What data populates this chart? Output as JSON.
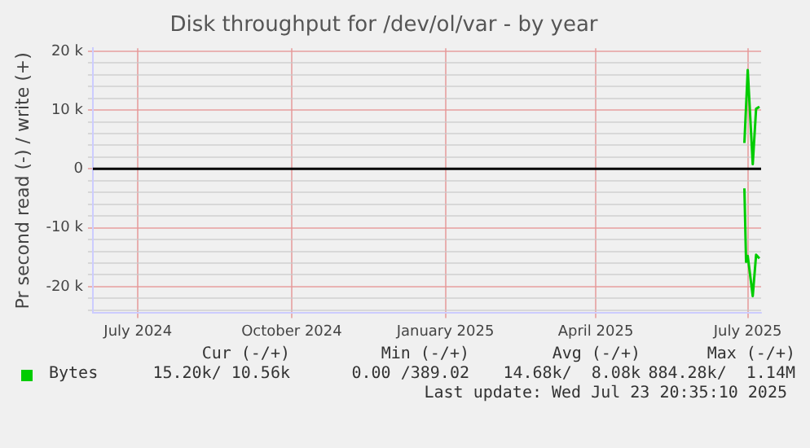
{
  "chart_data": {
    "type": "line",
    "title": "Disk throughput for /dev/ol/var - by year",
    "ylabel": "Pr second read (-) / write (+)",
    "xlim": [
      "2024-06-19",
      "2025-07-24"
    ],
    "xticks": [
      {
        "value": "2024-07-16",
        "label": "July 2024"
      },
      {
        "value": "2024-10-16",
        "label": "October 2024"
      },
      {
        "value": "2025-01-16",
        "label": "January 2025"
      },
      {
        "value": "2025-04-16",
        "label": "April 2025"
      },
      {
        "value": "2025-07-16",
        "label": "July 2025"
      }
    ],
    "ylim": [
      -24500,
      20500
    ],
    "yticks": [
      {
        "value": -24000,
        "label": null
      },
      {
        "value": -22000,
        "label": null
      },
      {
        "value": -20000,
        "label": "-20 k"
      },
      {
        "value": -18000,
        "label": null
      },
      {
        "value": -16000,
        "label": null
      },
      {
        "value": -14000,
        "label": null
      },
      {
        "value": -12000,
        "label": null
      },
      {
        "value": -10000,
        "label": "-10 k"
      },
      {
        "value": -8000,
        "label": null
      },
      {
        "value": -6000,
        "label": null
      },
      {
        "value": -4000,
        "label": null
      },
      {
        "value": -2000,
        "label": null
      },
      0,
      {
        "value": 2000,
        "label": null
      },
      {
        "value": 4000,
        "label": null
      },
      {
        "value": 6000,
        "label": null
      },
      {
        "value": 8000,
        "label": null
      },
      {
        "value": 10000,
        "label": "10 k"
      },
      {
        "value": 12000,
        "label": null
      },
      {
        "value": 14000,
        "label": null
      },
      {
        "value": 16000,
        "label": null
      },
      {
        "value": 18000,
        "label": null
      },
      {
        "value": 20000,
        "label": "20 k"
      }
    ],
    "grid": true,
    "legend": "bottom",
    "marker": "none",
    "line_style": "solid",
    "ref_lines": [
      {
        "axis": "y",
        "value": 0,
        "color": "#000000"
      }
    ],
    "series": [
      {
        "name": "Bytes",
        "color": "#00cc00",
        "x": [
          "2025-07-14",
          "2025-07-16",
          "2025-07-19",
          "2025-07-21",
          "2025-07-23"
        ],
        "values": [
          4400,
          16800,
          800,
          10200,
          10560
        ]
      },
      {
        "color": "#00cc00",
        "x": [
          "2025-07-14",
          "2025-07-15",
          "2025-07-16",
          "2025-07-19",
          "2025-07-21",
          "2025-07-23"
        ],
        "values": [
          -3300,
          -15800,
          -14800,
          -21600,
          -14600,
          -15200
        ]
      }
    ],
    "annotations": [
      "Cur (-/+)",
      "Min (-/+)",
      "Avg (-/+)",
      "Max (-/+)",
      "15.20k/ 10.56k",
      "0.00 /389.02",
      "14.68k/  8.08k",
      "884.28k/  1.14M",
      "Last update: Wed Jul 23 20:35:10 2025"
    ]
  }
}
